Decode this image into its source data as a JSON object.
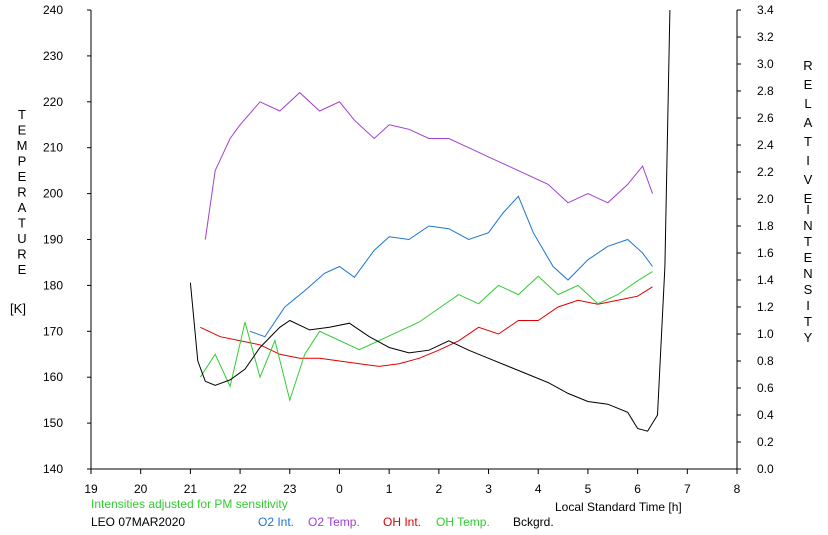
{
  "chart_data": {
    "type": "line",
    "left_axis": {
      "title_letters": [
        "T",
        "E",
        "M",
        "P",
        "E",
        "R",
        "A",
        "T",
        "U",
        "R",
        "E"
      ],
      "unit": "[K]",
      "range": [
        140,
        240
      ],
      "ticks": [
        "140",
        "150",
        "160",
        "170",
        "180",
        "190",
        "200",
        "210",
        "220",
        "230",
        "240"
      ]
    },
    "right_axis": {
      "title_word1": [
        "R",
        "E",
        "L",
        "A",
        "T",
        "I",
        "V",
        "E"
      ],
      "title_word2": [
        "I",
        "N",
        "T",
        "E",
        "N",
        "S",
        "I",
        "T",
        "Y"
      ],
      "range": [
        0.0,
        3.4
      ],
      "ticks": [
        "0.0",
        "0.2",
        "0.4",
        "0.6",
        "0.8",
        "1.0",
        "1.2",
        "1.4",
        "1.6",
        "1.8",
        "2.0",
        "2.2",
        "2.4",
        "2.6",
        "2.8",
        "3.0",
        "3.2",
        "3.4"
      ]
    },
    "x_axis": {
      "label": "Local Standard Time [h]",
      "range": [
        19,
        32
      ],
      "ticks": [
        "19",
        "20",
        "21",
        "22",
        "23",
        "0",
        "1",
        "2",
        "3",
        "4",
        "5",
        "6",
        "7",
        "8"
      ]
    },
    "note": "Intensities adjusted for PM sensitivity",
    "station": "LEO 07MAR2020",
    "series": [
      {
        "name": "O2 Int.",
        "axis": "right",
        "color": "#1a75d1",
        "x": [
          22.2,
          22.5,
          22.9,
          23.3,
          23.7,
          24.0,
          24.3,
          24.7,
          25.0,
          25.4,
          25.8,
          26.2,
          26.6,
          27.0,
          27.3,
          27.6,
          27.9,
          28.3,
          28.6,
          29.0,
          29.4,
          29.8,
          30.1,
          30.3
        ],
        "y": [
          1.02,
          0.98,
          1.2,
          1.32,
          1.45,
          1.5,
          1.42,
          1.62,
          1.72,
          1.7,
          1.8,
          1.78,
          1.7,
          1.75,
          1.9,
          2.02,
          1.75,
          1.5,
          1.4,
          1.55,
          1.65,
          1.7,
          1.6,
          1.5
        ]
      },
      {
        "name": "O2 Temp.",
        "axis": "left",
        "color": "#a040d0",
        "x": [
          21.3,
          21.5,
          21.8,
          22.0,
          22.4,
          22.8,
          23.2,
          23.6,
          24.0,
          24.3,
          24.7,
          25.0,
          25.4,
          25.8,
          26.2,
          26.6,
          27.0,
          27.4,
          27.8,
          28.2,
          28.6,
          29.0,
          29.4,
          29.8,
          30.1,
          30.3
        ],
        "y": [
          190,
          205,
          212,
          215,
          220,
          218,
          222,
          218,
          220,
          216,
          212,
          215,
          214,
          212,
          212,
          210,
          208,
          206,
          204,
          202,
          198,
          200,
          198,
          202,
          206,
          200
        ]
      },
      {
        "name": "OH Int.",
        "axis": "right",
        "color": "#e00000",
        "x": [
          21.2,
          21.6,
          22.0,
          22.4,
          22.8,
          23.2,
          23.6,
          24.0,
          24.4,
          24.8,
          25.2,
          25.6,
          26.0,
          26.4,
          26.8,
          27.2,
          27.6,
          28.0,
          28.4,
          28.8,
          29.2,
          29.6,
          30.0,
          30.3
        ],
        "y": [
          1.05,
          0.98,
          0.95,
          0.92,
          0.85,
          0.82,
          0.82,
          0.8,
          0.78,
          0.76,
          0.78,
          0.82,
          0.88,
          0.95,
          1.05,
          1.0,
          1.1,
          1.1,
          1.2,
          1.25,
          1.22,
          1.25,
          1.28,
          1.35
        ]
      },
      {
        "name": "OH Temp.",
        "axis": "left",
        "color": "#33cc33",
        "x": [
          21.2,
          21.5,
          21.8,
          22.1,
          22.4,
          22.7,
          23.0,
          23.3,
          23.6,
          24.0,
          24.4,
          24.8,
          25.2,
          25.6,
          26.0,
          26.4,
          26.8,
          27.2,
          27.6,
          28.0,
          28.4,
          28.8,
          29.2,
          29.6,
          30.0,
          30.3
        ],
        "y": [
          160,
          165,
          158,
          172,
          160,
          168,
          155,
          165,
          170,
          168,
          166,
          168,
          170,
          172,
          175,
          178,
          176,
          180,
          178,
          182,
          178,
          180,
          176,
          178,
          181,
          183
        ]
      },
      {
        "name": "Bckgrd.",
        "axis": "right",
        "color": "#000000",
        "x": [
          21.0,
          21.15,
          21.3,
          21.5,
          21.8,
          22.1,
          22.4,
          22.8,
          23.0,
          23.4,
          23.8,
          24.2,
          24.6,
          25.0,
          25.4,
          25.8,
          26.2,
          26.6,
          27.0,
          27.4,
          27.8,
          28.2,
          28.6,
          29.0,
          29.4,
          29.8,
          30.0,
          30.2,
          30.4,
          30.55,
          30.65
        ],
        "y": [
          1.38,
          0.8,
          0.65,
          0.62,
          0.66,
          0.74,
          0.9,
          1.05,
          1.1,
          1.03,
          1.05,
          1.08,
          0.98,
          0.9,
          0.86,
          0.88,
          0.95,
          0.88,
          0.82,
          0.76,
          0.7,
          0.64,
          0.56,
          0.5,
          0.48,
          0.42,
          0.3,
          0.28,
          0.4,
          1.5,
          3.4
        ]
      }
    ],
    "colors": {
      "axis": "#000000",
      "background": "#ffffff",
      "note": "#33cc33"
    },
    "grid": false,
    "legend_position": "bottom"
  }
}
